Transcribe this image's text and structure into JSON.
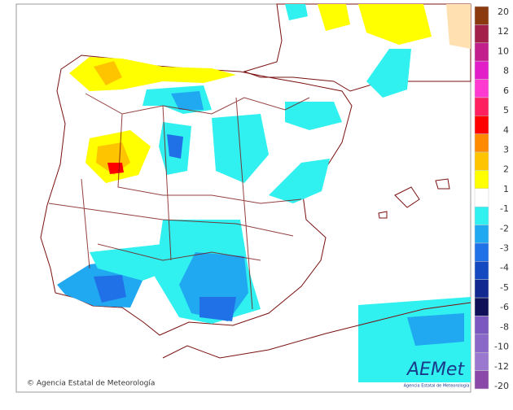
{
  "map": {
    "credit": "© Agencia Estatal de Meteorología",
    "logo": {
      "name": "AEMet",
      "subtitle": "Agencia Estatal de Meteorología"
    }
  },
  "legend": {
    "labels": [
      20,
      12,
      10,
      8,
      6,
      5,
      4,
      3,
      2,
      1,
      -1,
      -2,
      -3,
      -4,
      -5,
      -6,
      -8,
      -10,
      -12,
      -20
    ],
    "colors": [
      "#8b3a10",
      "#a3204a",
      "#c21e8c",
      "#e21ec8",
      "#ff3ad0",
      "#ff2060",
      "#ff0000",
      "#ff8a00",
      "#ffc400",
      "#ffff00",
      "#ffffff",
      "#30f0f0",
      "#20a8f0",
      "#2070e8",
      "#1448c0",
      "#102890",
      "#101058",
      "#7a58c0",
      "#8a68c8",
      "#9a78d0",
      "#8a48a8"
    ]
  }
}
